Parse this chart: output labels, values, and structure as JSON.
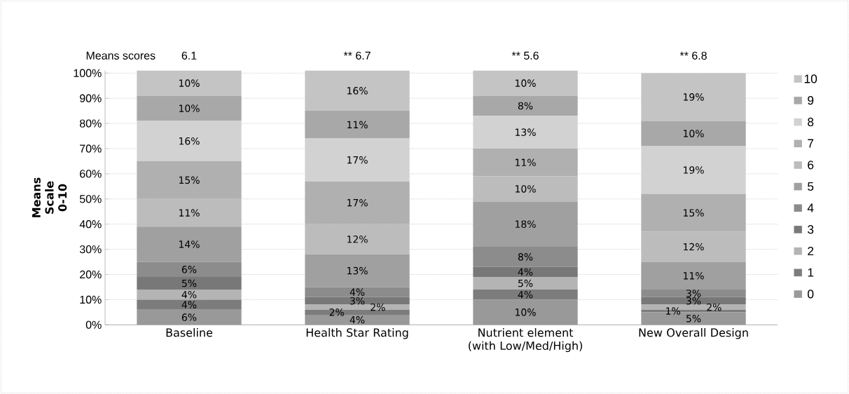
{
  "chart_data": {
    "type": "bar",
    "stacked": true,
    "ylabel": "Means Scale 0-10",
    "categories": [
      "Baseline",
      "Health Star Rating",
      "Nutrient element (with Low/Med/High)",
      "New Overall Design"
    ],
    "annotations": [
      "Means scores",
      "6.1",
      "** 6.7",
      "** 5.6",
      "** 6.8"
    ],
    "ylim": [
      0,
      101
    ],
    "yticks": [
      {
        "value": 0,
        "label": "0%"
      },
      {
        "value": 10,
        "label": "10%"
      },
      {
        "value": 20,
        "label": "20%"
      },
      {
        "value": 30,
        "label": "30%"
      },
      {
        "value": 40,
        "label": "40%"
      },
      {
        "value": 50,
        "label": "50%"
      },
      {
        "value": 60,
        "label": "60%"
      },
      {
        "value": 70,
        "label": "70%"
      },
      {
        "value": 80,
        "label": "80%"
      },
      {
        "value": 90,
        "label": "90%"
      },
      {
        "value": 100,
        "label": "100%"
      }
    ],
    "grid": "y",
    "legend": "right",
    "series": [
      {
        "name": "0",
        "color": "#999999",
        "values": [
          6,
          4,
          10,
          5
        ],
        "value_labels": [
          "6%",
          "4%",
          "10%",
          "5%"
        ]
      },
      {
        "name": "1",
        "color": "#7c7c7c",
        "values": [
          4,
          2,
          4,
          1
        ],
        "value_labels": [
          "4%",
          "2%",
          "4%",
          "1%"
        ]
      },
      {
        "name": "2",
        "color": "#b4b4b4",
        "values": [
          4,
          2,
          5,
          2
        ],
        "value_labels": [
          "4%",
          "2%",
          "5%",
          "2%"
        ]
      },
      {
        "name": "3",
        "color": "#787878",
        "values": [
          5,
          3,
          4,
          3
        ],
        "value_labels": [
          "5%",
          "3%",
          "4%",
          "3%"
        ]
      },
      {
        "name": "4",
        "color": "#8c8c8c",
        "values": [
          6,
          4,
          8,
          3
        ],
        "value_labels": [
          "6%",
          "4%",
          "8%",
          "3%"
        ]
      },
      {
        "name": "5",
        "color": "#a0a0a0",
        "values": [
          14,
          13,
          18,
          11
        ],
        "value_labels": [
          "14%",
          "13%",
          "18%",
          "11%"
        ]
      },
      {
        "name": "6",
        "color": "#bcbcbc",
        "values": [
          11,
          12,
          10,
          12
        ],
        "value_labels": [
          "11%",
          "12%",
          "10%",
          "12%"
        ]
      },
      {
        "name": "7",
        "color": "#b0b0b0",
        "values": [
          15,
          17,
          11,
          15
        ],
        "value_labels": [
          "15%",
          "17%",
          "11%",
          "15%"
        ]
      },
      {
        "name": "8",
        "color": "#d2d2d2",
        "values": [
          16,
          17,
          13,
          19
        ],
        "value_labels": [
          "16%",
          "17%",
          "13%",
          "19%"
        ]
      },
      {
        "name": "9",
        "color": "#a8a8a8",
        "values": [
          10,
          11,
          8,
          10
        ],
        "value_labels": [
          "10%",
          "11%",
          "8%",
          "10%"
        ]
      },
      {
        "name": "10",
        "color": "#c4c4c4",
        "values": [
          10,
          16,
          10,
          19
        ],
        "value_labels": [
          "10%",
          "16%",
          "10%",
          "19%"
        ]
      }
    ]
  }
}
